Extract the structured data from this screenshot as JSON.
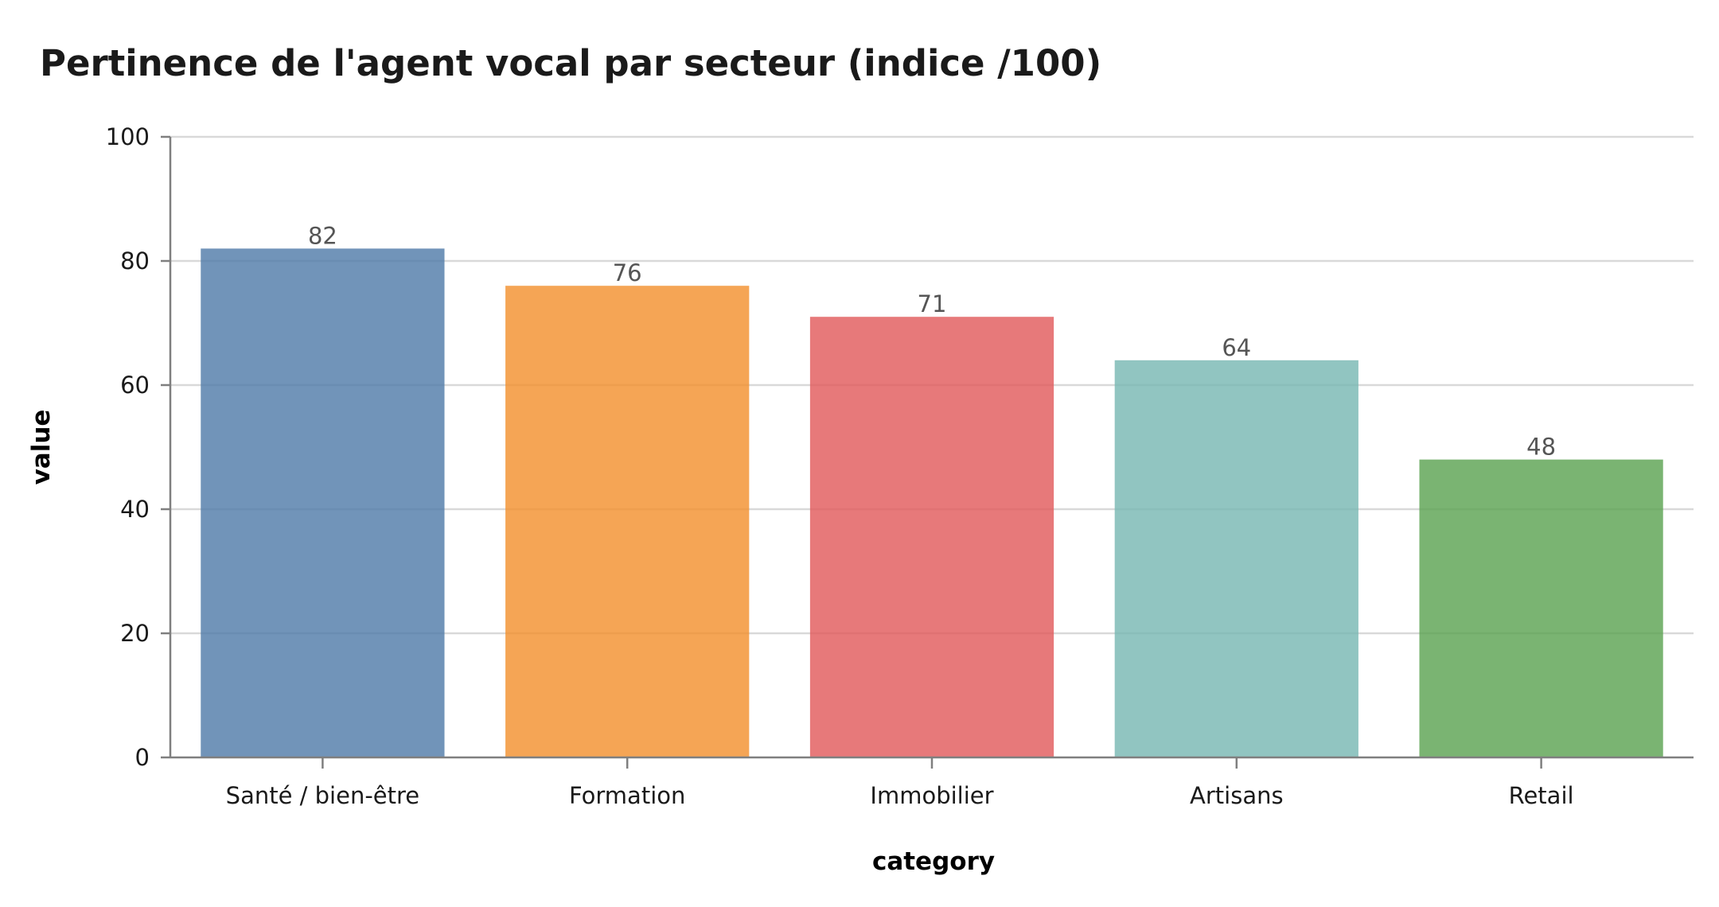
{
  "chart_data": {
    "type": "bar",
    "title": "Pertinence de l'agent vocal par secteur (indice /100)",
    "xlabel": "category",
    "ylabel": "value",
    "categories": [
      "Santé / bien-être",
      "Formation",
      "Immobilier",
      "Artisans",
      "Retail"
    ],
    "values": [
      82,
      76,
      71,
      64,
      48
    ],
    "colors": [
      "#4e79a7",
      "#f28e2b",
      "#e15759",
      "#76b7b2",
      "#59a14f"
    ],
    "ylim": [
      0,
      100
    ],
    "yticks": [
      0,
      20,
      40,
      60,
      80,
      100
    ],
    "grid": true,
    "legend": "none",
    "data_labels": true
  }
}
